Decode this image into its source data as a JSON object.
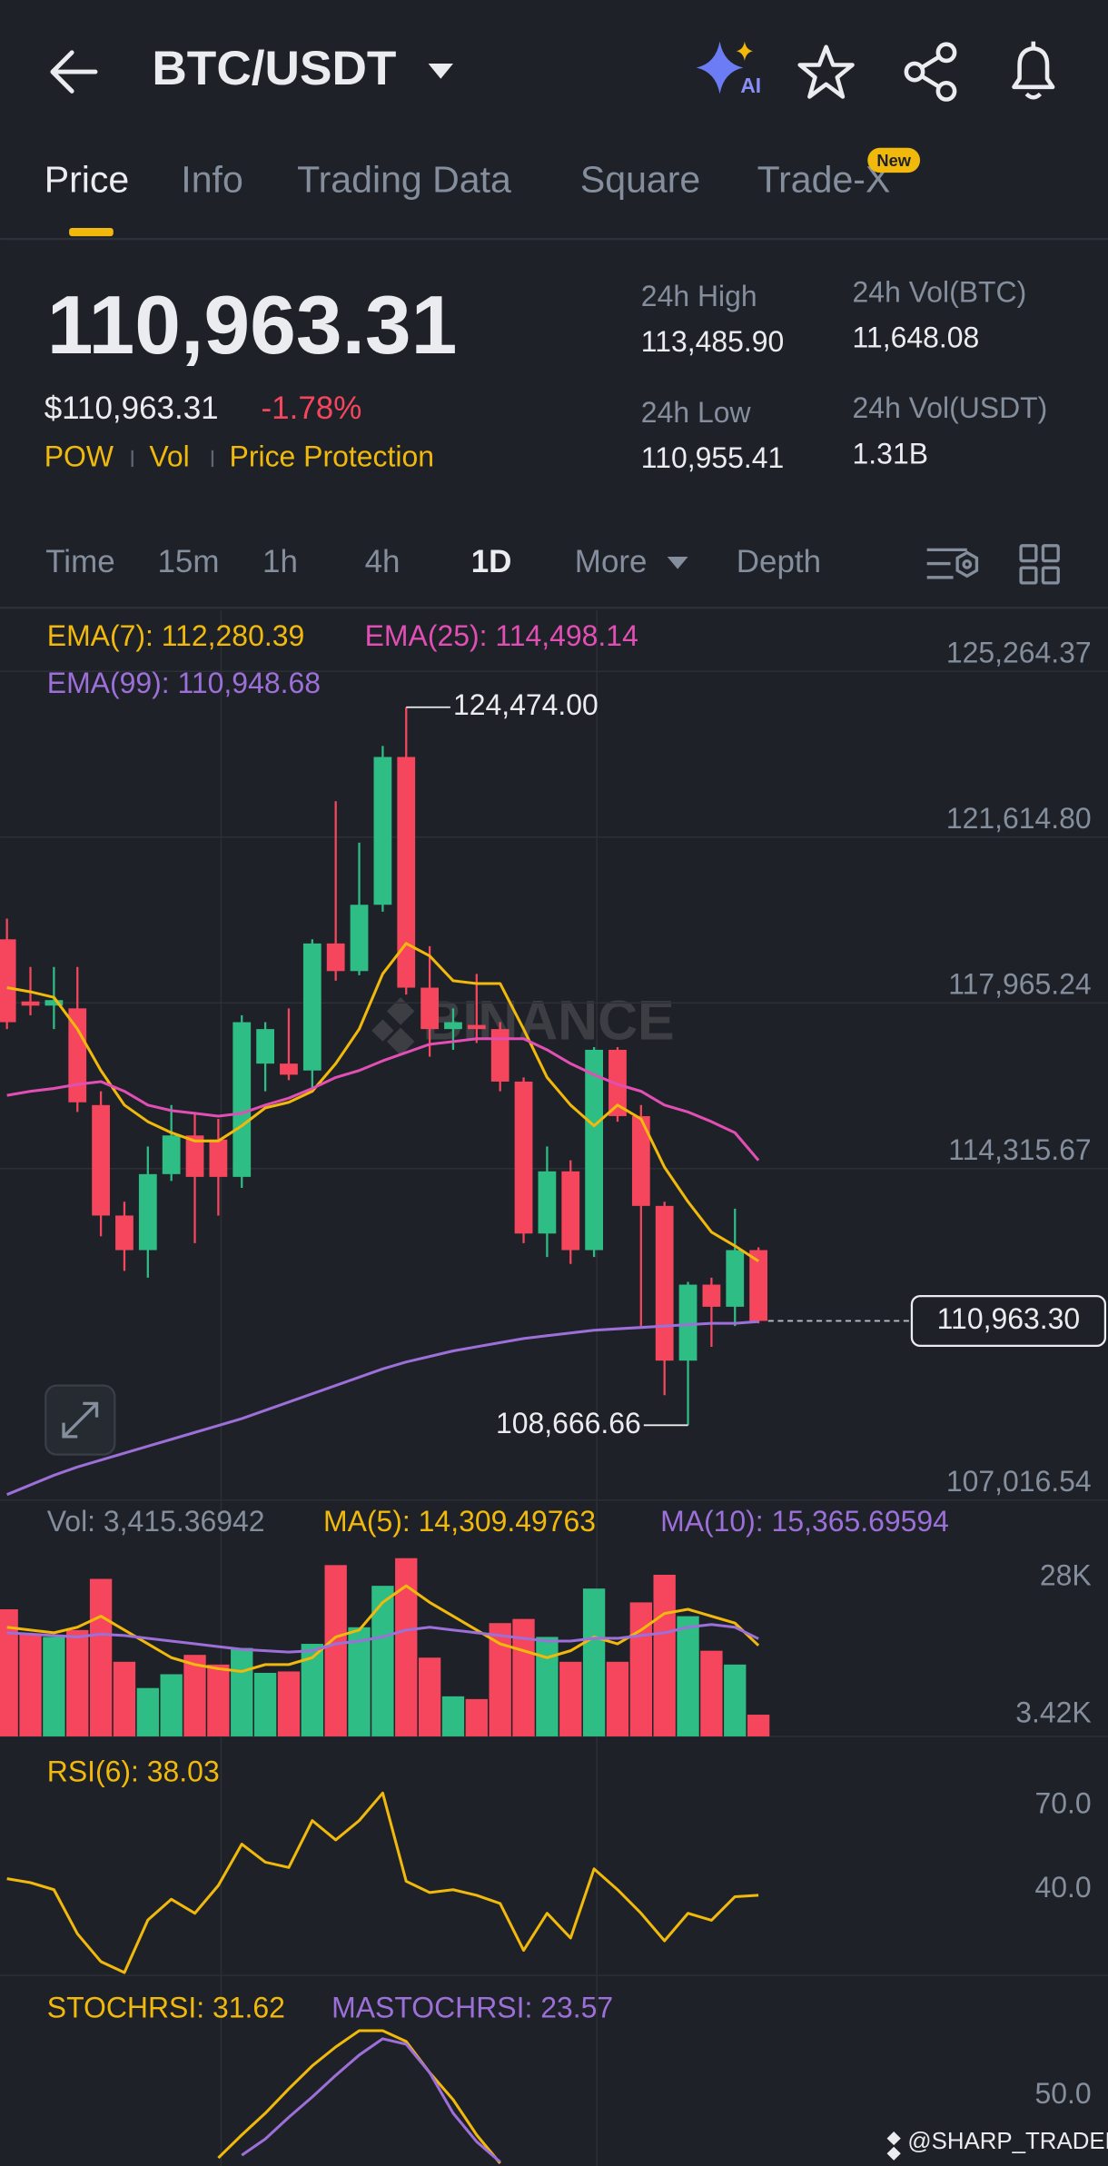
{
  "header": {
    "title": "BTC/USDT",
    "ai_badge": "AI"
  },
  "tabs": {
    "items": [
      "Price",
      "Info",
      "Trading Data",
      "Square",
      "Trade-X"
    ],
    "badge": "New"
  },
  "ticker": {
    "last_price": "110,963.31",
    "usd_price": "$110,963.31",
    "change": "-1.78%",
    "tags": [
      "POW",
      "Vol",
      "Price Protection"
    ],
    "stats": [
      {
        "label": "24h High",
        "value": "113,485.90"
      },
      {
        "label": "24h Vol(BTC)",
        "value": "11,648.08"
      },
      {
        "label": "24h Low",
        "value": "110,955.41"
      },
      {
        "label": "24h Vol(USDT)",
        "value": "1.31B"
      }
    ]
  },
  "intervals": {
    "items": [
      "Time",
      "15m",
      "1h",
      "4h",
      "1D",
      "More",
      "Depth"
    ]
  },
  "watermark": "BINANCE",
  "footer": "@SHARP_TRADER",
  "chart_data": [
    {
      "type": "candlestick",
      "up_color": "#2ebd85",
      "down_color": "#f6465d",
      "open": [
        119364,
        117996,
        117905,
        117844,
        115715,
        113283,
        112522,
        114195,
        115046,
        114955,
        114134,
        116628,
        116628,
        116476,
        119273,
        118665,
        120125,
        123379,
        118300,
        117388,
        117479,
        117388,
        116232,
        112887,
        114256,
        112522,
        116932,
        115472,
        113495,
        110089,
        111762,
        111275,
        112522
      ],
      "high": [
        119821,
        118756,
        118756,
        118756,
        116019,
        113587,
        114803,
        115715,
        115563,
        115411,
        117692,
        117540,
        117844,
        119364,
        122405,
        121493,
        123622,
        124474.0,
        119212,
        117844,
        118604,
        117540,
        116323,
        114803,
        114499,
        116992,
        116992,
        115715,
        113587,
        111823,
        111914,
        113435,
        112583
      ],
      "low": [
        117388,
        117692,
        117388,
        115563,
        112826,
        112066,
        111914,
        114043,
        112674,
        113283,
        113891,
        116019,
        116263,
        116019,
        118452,
        118574,
        119973,
        118148,
        116780,
        116932,
        117084,
        116019,
        112674,
        112370,
        112218,
        112370,
        115350,
        110850,
        109329,
        108666.66,
        110394,
        110850,
        110910
      ],
      "close": [
        117540,
        117905,
        118026,
        115776,
        113283,
        112522,
        114195,
        115046,
        114134,
        114134,
        117540,
        117388,
        116384,
        119273,
        118665,
        120125,
        123379,
        118300,
        117388,
        117540,
        117388,
        116232,
        112887,
        114256,
        112522,
        116932,
        115472,
        113495,
        110089,
        111762,
        111275,
        112522,
        110963.3
      ],
      "series": [
        {
          "name": "EMA(7): 112,280.39",
          "color": "#f0b90b",
          "values": [
            118300,
            118209,
            118087,
            117388,
            116476,
            115715,
            115350,
            115107,
            114925,
            114925,
            115259,
            115654,
            115776,
            116019,
            116628,
            117388,
            118604,
            119273,
            118999,
            118452,
            118391,
            118391,
            117388,
            116323,
            115715,
            115259,
            115715,
            115411,
            114347,
            113587,
            112918,
            112614,
            112280.39
          ]
        },
        {
          "name": "EMA(25): 114,498.14",
          "color": "#e24fb4",
          "values": [
            115928,
            116019,
            116080,
            116171,
            116232,
            116019,
            115715,
            115594,
            115533,
            115472,
            115533,
            115715,
            115867,
            116080,
            116323,
            116476,
            116689,
            116871,
            117054,
            117114,
            117175,
            117175,
            117175,
            116932,
            116628,
            116384,
            116171,
            116019,
            115715,
            115563,
            115350,
            115107,
            114498.14
          ]
        },
        {
          "name": "EMA(99): 110,948.68",
          "color": "#9c6fd9",
          "values": [
            107140,
            107353,
            107565,
            107748,
            107900,
            108052,
            108204,
            108356,
            108508,
            108660,
            108812,
            108995,
            109177,
            109360,
            109542,
            109724,
            109907,
            110059,
            110181,
            110302,
            110394,
            110485,
            110576,
            110637,
            110698,
            110758,
            110789,
            110819,
            110850,
            110880,
            110910,
            110910,
            110948.68
          ]
        }
      ],
      "annotations": [
        {
          "value": 124474.0,
          "label": "124,474.00"
        },
        {
          "value": 108666.66,
          "label": "108,666.66"
        }
      ],
      "price_line": {
        "value": 110963.3,
        "label": "110,963.30"
      },
      "ylim": [
        106895,
        126602
      ],
      "yticks": [
        {
          "value": 125264.37,
          "label": "125,264.37"
        },
        {
          "value": 121614.8,
          "label": "121,614.80"
        },
        {
          "value": 117965.24,
          "label": "117,965.24"
        },
        {
          "value": 114315.67,
          "label": "114,315.67"
        },
        {
          "value": 107016.54,
          "label": "107,016.54"
        }
      ],
      "grid": true
    },
    {
      "type": "bar",
      "series": [
        {
          "name": "Vol: 3,415.36942",
          "values": [
            20000,
            16087,
            15652,
            16739,
            24783,
            11739,
            7609,
            9783,
            12826,
            11304,
            13913,
            10000,
            10217,
            14565,
            26957,
            17174,
            23696,
            28043,
            12391,
            6304,
            5870,
            17826,
            18478,
            15652,
            11739,
            23261,
            11739,
            21087,
            25435,
            18913,
            13478,
            11304,
            3415.36942
          ],
          "colors": [
            "#f6465d",
            "#f6465d",
            "#2ebd85",
            "#f6465d",
            "#f6465d",
            "#f6465d",
            "#2ebd85",
            "#2ebd85",
            "#f6465d",
            "#f6465d",
            "#2ebd85",
            "#2ebd85",
            "#f6465d",
            "#2ebd85",
            "#f6465d",
            "#2ebd85",
            "#2ebd85",
            "#f6465d",
            "#f6465d",
            "#2ebd85",
            "#f6465d",
            "#f6465d",
            "#f6465d",
            "#2ebd85",
            "#f6465d",
            "#2ebd85",
            "#f6465d",
            "#f6465d",
            "#f6465d",
            "#2ebd85",
            "#f6465d",
            "#2ebd85",
            "#f6465d"
          ]
        },
        {
          "name": "MA(5): 14,309.49763",
          "color": "#f0b90b",
          "values": [
            17174,
            16739,
            16304,
            17174,
            18913,
            16739,
            14565,
            12391,
            11304,
            10652,
            10217,
            11304,
            11304,
            12391,
            15652,
            16739,
            21087,
            23696,
            21087,
            18913,
            16739,
            14565,
            13478,
            12391,
            13478,
            15652,
            14565,
            16739,
            19348,
            20000,
            18913,
            17826,
            14309.49763
          ]
        },
        {
          "name": "MA(10): 15,365.69594",
          "color": "#9c6fd9",
          "values": [
            16304,
            16087,
            15870,
            15652,
            16087,
            15870,
            15435,
            15000,
            14565,
            14130,
            13696,
            13478,
            13261,
            13478,
            14565,
            15000,
            15652,
            16739,
            17174,
            16739,
            16304,
            15870,
            15435,
            15000,
            15000,
            15435,
            15435,
            15870,
            16304,
            17174,
            17609,
            17174,
            15365.69594
          ]
        }
      ],
      "ylim": [
        0,
        29780
      ],
      "yticks": [
        {
          "value": 28000,
          "label": "28K"
        },
        {
          "value": 3420,
          "label": "3.42K"
        }
      ]
    },
    {
      "type": "line",
      "series": [
        {
          "name": "RSI(6): 38.03",
          "color": "#f0b90b",
          "values": [
            43.9,
            42.5,
            40,
            24.3,
            14.4,
            10.5,
            29.2,
            36.6,
            31.6,
            41.5,
            56.2,
            49.8,
            47.9,
            64.6,
            57.7,
            64.6,
            74.4,
            43,
            39,
            40,
            38,
            35.1,
            18.4,
            31.6,
            22.8,
            47.4,
            40,
            31.6,
            21.8,
            31.6,
            29.1,
            37.5,
            38.03
          ]
        }
      ],
      "ylim": [
        9.5,
        92.1
      ],
      "yticks": [
        {
          "value": 70,
          "label": "70.0"
        },
        {
          "value": 40,
          "label": "40.0"
        }
      ]
    },
    {
      "type": "line",
      "series": [
        {
          "name": "STOCHRSI: 31.62",
          "color": "#f0b90b",
          "values": [
            null,
            null,
            null,
            null,
            null,
            null,
            null,
            null,
            null,
            4,
            21,
            37,
            55,
            72,
            86,
            98,
            98,
            90,
            67,
            47,
            21,
            0,
            null,
            null,
            null,
            null,
            null,
            null,
            null,
            null,
            null,
            null,
            null
          ]
        },
        {
          "name": "MASTOCHRSI: 23.57",
          "color": "#9c6fd9",
          "values": [
            null,
            null,
            null,
            null,
            null,
            null,
            null,
            null,
            null,
            null,
            6,
            18,
            34,
            49,
            65,
            80,
            92,
            88,
            67,
            37,
            16,
            1,
            null,
            null,
            null,
            null,
            null,
            null,
            null,
            null,
            null,
            null,
            null
          ]
        }
      ],
      "ylim": [
        -2,
        130.7
      ],
      "yticks": [
        {
          "value": 50,
          "label": "50.0"
        }
      ]
    }
  ]
}
